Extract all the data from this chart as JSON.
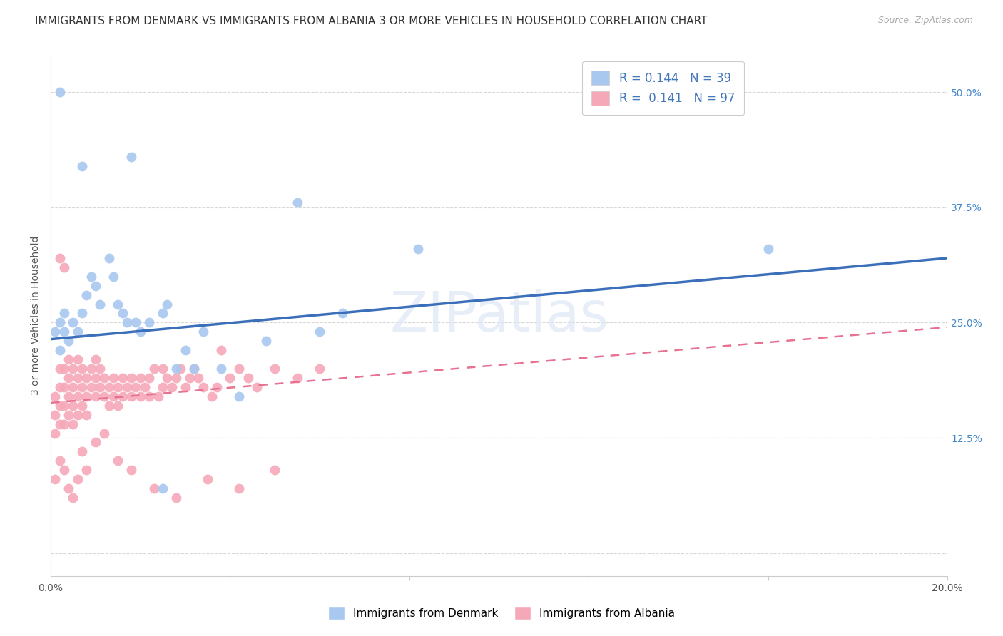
{
  "title": "IMMIGRANTS FROM DENMARK VS IMMIGRANTS FROM ALBANIA 3 OR MORE VEHICLES IN HOUSEHOLD CORRELATION CHART",
  "source": "Source: ZipAtlas.com",
  "ylabel": "3 or more Vehicles in Household",
  "xlim": [
    0.0,
    0.2
  ],
  "ylim": [
    -0.025,
    0.54
  ],
  "xticks": [
    0.0,
    0.04,
    0.08,
    0.12,
    0.16,
    0.2
  ],
  "xtick_labels": [
    "0.0%",
    "",
    "",
    "",
    "",
    "20.0%"
  ],
  "ytick_positions": [
    0.0,
    0.125,
    0.25,
    0.375,
    0.5
  ],
  "ytick_labels": [
    "",
    "12.5%",
    "25.0%",
    "37.5%",
    "50.0%"
  ],
  "denmark_color": "#a8c8f0",
  "albania_color": "#f5a8b8",
  "denmark_line_color": "#3b6fba",
  "albania_line_color": "#e87090",
  "R_denmark": 0.144,
  "N_denmark": 39,
  "R_albania": 0.141,
  "N_albania": 97,
  "legend_label_denmark": "Immigrants from Denmark",
  "legend_label_albania": "Immigrants from Albania",
  "dk_line_x0": 0.0,
  "dk_line_y0": 0.232,
  "dk_line_x1": 0.2,
  "dk_line_y1": 0.32,
  "al_line_x0": 0.0,
  "al_line_y0": 0.163,
  "al_line_x1": 0.2,
  "al_line_y1": 0.245,
  "watermark": "ZIPatlas",
  "background_color": "#ffffff",
  "grid_color": "#d8d8d8",
  "title_fontsize": 11,
  "axis_label_fontsize": 10,
  "tick_fontsize": 10,
  "legend_fontsize": 12,
  "denmark_x": [
    0.001,
    0.002,
    0.002,
    0.003,
    0.003,
    0.004,
    0.005,
    0.006,
    0.007,
    0.008,
    0.009,
    0.01,
    0.011,
    0.013,
    0.014,
    0.015,
    0.016,
    0.017,
    0.019,
    0.02,
    0.022,
    0.025,
    0.026,
    0.028,
    0.03,
    0.032,
    0.034,
    0.038,
    0.042,
    0.048,
    0.055,
    0.065,
    0.082,
    0.16,
    0.002,
    0.007,
    0.018,
    0.025,
    0.06
  ],
  "denmark_y": [
    0.24,
    0.25,
    0.22,
    0.24,
    0.26,
    0.23,
    0.25,
    0.24,
    0.26,
    0.28,
    0.3,
    0.29,
    0.27,
    0.32,
    0.3,
    0.27,
    0.26,
    0.25,
    0.25,
    0.24,
    0.25,
    0.26,
    0.27,
    0.2,
    0.22,
    0.2,
    0.24,
    0.2,
    0.17,
    0.23,
    0.38,
    0.26,
    0.33,
    0.33,
    0.5,
    0.42,
    0.43,
    0.07,
    0.24
  ],
  "albania_x": [
    0.001,
    0.001,
    0.001,
    0.002,
    0.002,
    0.002,
    0.002,
    0.003,
    0.003,
    0.003,
    0.003,
    0.004,
    0.004,
    0.004,
    0.004,
    0.005,
    0.005,
    0.005,
    0.005,
    0.006,
    0.006,
    0.006,
    0.006,
    0.007,
    0.007,
    0.007,
    0.008,
    0.008,
    0.008,
    0.009,
    0.009,
    0.01,
    0.01,
    0.01,
    0.011,
    0.011,
    0.012,
    0.012,
    0.013,
    0.013,
    0.014,
    0.014,
    0.015,
    0.015,
    0.016,
    0.016,
    0.017,
    0.018,
    0.018,
    0.019,
    0.02,
    0.02,
    0.021,
    0.022,
    0.022,
    0.023,
    0.024,
    0.025,
    0.025,
    0.026,
    0.027,
    0.028,
    0.029,
    0.03,
    0.031,
    0.032,
    0.033,
    0.034,
    0.036,
    0.037,
    0.038,
    0.04,
    0.042,
    0.044,
    0.046,
    0.05,
    0.055,
    0.06,
    0.001,
    0.002,
    0.003,
    0.004,
    0.005,
    0.006,
    0.007,
    0.008,
    0.01,
    0.012,
    0.015,
    0.018,
    0.023,
    0.028,
    0.035,
    0.042,
    0.05,
    0.002,
    0.003
  ],
  "albania_y": [
    0.17,
    0.15,
    0.13,
    0.16,
    0.14,
    0.18,
    0.2,
    0.16,
    0.18,
    0.14,
    0.2,
    0.17,
    0.15,
    0.19,
    0.21,
    0.16,
    0.18,
    0.2,
    0.14,
    0.17,
    0.19,
    0.15,
    0.21,
    0.16,
    0.18,
    0.2,
    0.17,
    0.19,
    0.15,
    0.18,
    0.2,
    0.17,
    0.19,
    0.21,
    0.18,
    0.2,
    0.17,
    0.19,
    0.16,
    0.18,
    0.17,
    0.19,
    0.16,
    0.18,
    0.17,
    0.19,
    0.18,
    0.17,
    0.19,
    0.18,
    0.17,
    0.19,
    0.18,
    0.17,
    0.19,
    0.2,
    0.17,
    0.18,
    0.2,
    0.19,
    0.18,
    0.19,
    0.2,
    0.18,
    0.19,
    0.2,
    0.19,
    0.18,
    0.17,
    0.18,
    0.22,
    0.19,
    0.2,
    0.19,
    0.18,
    0.2,
    0.19,
    0.2,
    0.08,
    0.1,
    0.09,
    0.07,
    0.06,
    0.08,
    0.11,
    0.09,
    0.12,
    0.13,
    0.1,
    0.09,
    0.07,
    0.06,
    0.08,
    0.07,
    0.09,
    0.32,
    0.31
  ]
}
